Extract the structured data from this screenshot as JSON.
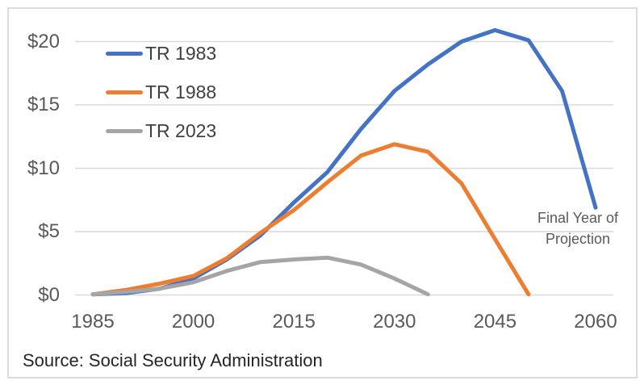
{
  "chart_data": {
    "type": "line",
    "title": "",
    "units": "trillions of dollars",
    "grid": true,
    "legend_position": "inside-top-left",
    "y_axis": {
      "ticks": [
        {
          "label": "$0",
          "value": 0
        },
        {
          "label": "$5",
          "value": 5
        },
        {
          "label": "$10",
          "value": 10
        },
        {
          "label": "$15",
          "value": 15
        },
        {
          "label": "$20",
          "value": 20
        }
      ],
      "ylim": [
        0,
        21.5
      ]
    },
    "x_axis": {
      "ticks": [
        {
          "label": "1985",
          "value": 1985
        },
        {
          "label": "2000",
          "value": 2000
        },
        {
          "label": "2015",
          "value": 2015
        },
        {
          "label": "2030",
          "value": 2030
        },
        {
          "label": "2045",
          "value": 2045
        },
        {
          "label": "2060",
          "value": 2060
        }
      ],
      "xlim": [
        1985,
        2060
      ]
    },
    "series": [
      {
        "name": "TR 1983",
        "color": "#4472C4",
        "years": [
          1985,
          1990,
          1995,
          2000,
          2005,
          2010,
          2015,
          2020,
          2025,
          2030,
          2035,
          2040,
          2045,
          2050,
          2055,
          2060
        ],
        "values": [
          0.05,
          0.15,
          0.5,
          1.3,
          2.8,
          4.7,
          7.3,
          9.7,
          13.1,
          16.1,
          18.2,
          20.0,
          20.9,
          20.1,
          16.1,
          6.9
        ]
      },
      {
        "name": "TR 1988",
        "color": "#ED7D31",
        "years": [
          1985,
          1990,
          1995,
          2000,
          2005,
          2010,
          2015,
          2020,
          2025,
          2030,
          2035,
          2040,
          2045,
          2050
        ],
        "values": [
          0.05,
          0.4,
          0.9,
          1.5,
          2.9,
          4.9,
          6.7,
          8.9,
          11.0,
          11.9,
          11.3,
          8.8,
          4.4,
          0.05
        ]
      },
      {
        "name": "TR 2023",
        "color": "#A5A5A5",
        "years": [
          1985,
          1990,
          1995,
          2000,
          2005,
          2010,
          2015,
          2020,
          2025,
          2030,
          2035
        ],
        "values": [
          0.05,
          0.25,
          0.5,
          1.0,
          1.9,
          2.6,
          2.8,
          2.95,
          2.4,
          1.3,
          0.05
        ]
      }
    ],
    "annotation": {
      "line1": "Final Year of",
      "line2": "Projection"
    },
    "source": "Source: Social Security Administration"
  },
  "colors": {
    "gridline": "#D9D9D9",
    "frame_border": "#DCDCDC",
    "axis_text": "#595959",
    "legend_text": "#404040",
    "annotation_text": "#595959",
    "source_text": "#262626",
    "background": "#FFFFFF"
  }
}
